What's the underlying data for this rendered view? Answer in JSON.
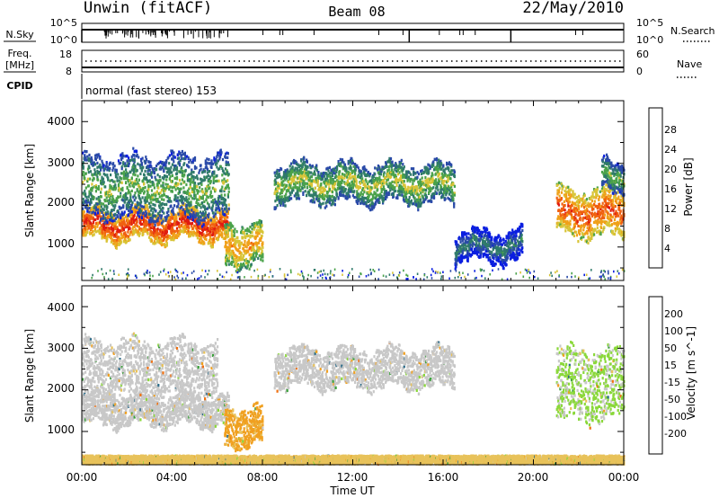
{
  "header": {
    "station": "Unwin (fitACF)",
    "beam": "Beam 08",
    "date": "22/May/2010"
  },
  "status_panels": {
    "nsky": {
      "label": "N.Sky",
      "ticks": [
        "10^5",
        "10^0"
      ]
    },
    "nsearch": {
      "label": "N.Search",
      "ticks": [
        "10^5",
        "10^0"
      ]
    },
    "freq": {
      "label_line1": "Freq.",
      "label_line2": "[MHz]",
      "ticks": [
        "18",
        "8"
      ]
    },
    "nave": {
      "label": "Nave",
      "ticks": [
        "60",
        "0"
      ]
    },
    "cpid": {
      "label": "CPID",
      "value": "normal (fast stereo) 153"
    }
  },
  "colors": {
    "power_scale": [
      "#0a1ee0",
      "#2a4aa8",
      "#2f7a6a",
      "#4aa24a",
      "#d8c436",
      "#f0a018",
      "#f06010",
      "#e01c10"
    ],
    "velocity_scale": [
      "#2040a8",
      "#2a6a88",
      "#3aa03a",
      "#8ad83a",
      "#c8c8c8",
      "#e8c25a",
      "#f0a020",
      "#f07010",
      "#e84810",
      "#e01010"
    ]
  },
  "chart_data": [
    {
      "type": "heatmap",
      "title": "Power",
      "xlabel": "",
      "ylabel": "Slant Range [km]",
      "xlim": [
        0,
        24
      ],
      "ylim": [
        200,
        4500
      ],
      "ytick_labels": [
        "1000",
        "2000",
        "3000",
        "4000"
      ],
      "colorbar": {
        "label": "Power [dB]",
        "tick_labels": [
          "4",
          "8",
          "12",
          "16",
          "20",
          "24",
          "28"
        ]
      },
      "regions": [
        {
          "x": [
            0.0,
            6.5
          ],
          "range": [
            1200,
            1900
          ],
          "power_db": 24
        },
        {
          "x": [
            0.0,
            6.5
          ],
          "range": [
            1700,
            3200
          ],
          "power_db": 10
        },
        {
          "x": [
            6.3,
            8.0
          ],
          "range": [
            600,
            1600
          ],
          "power_db": 18
        },
        {
          "x": [
            8.5,
            16.5
          ],
          "range": [
            2100,
            3000
          ],
          "power_db": 12
        },
        {
          "x": [
            16.5,
            19.5
          ],
          "range": [
            700,
            1400
          ],
          "power_db": 5
        },
        {
          "x": [
            21.0,
            24.0
          ],
          "range": [
            1300,
            2400
          ],
          "power_db": 22
        },
        {
          "x": [
            23.0,
            24.0
          ],
          "range": [
            2400,
            3100
          ],
          "power_db": 10
        }
      ]
    },
    {
      "type": "heatmap",
      "title": "Velocity",
      "xlabel": "Time UT",
      "ylabel": "Slant Range [km]",
      "xlim": [
        0,
        24
      ],
      "ylim": [
        200,
        4500
      ],
      "xtick_labels": [
        "00:00",
        "04:00",
        "08:00",
        "12:00",
        "16:00",
        "20:00",
        "00:00"
      ],
      "ytick_labels": [
        "1000",
        "2000",
        "3000",
        "4000"
      ],
      "colorbar": {
        "label": "Velocity [m s^-1]",
        "tick_labels": [
          "200",
          "100",
          "50",
          "15",
          "-15",
          "-50",
          "-100",
          "-200"
        ]
      },
      "regions": [
        {
          "x": [
            0.0,
            6.5
          ],
          "range": [
            1200,
            1900
          ],
          "velocity": 0
        },
        {
          "x": [
            0.0,
            6.0
          ],
          "range": [
            1900,
            3200
          ],
          "velocity": 0
        },
        {
          "x": [
            6.3,
            8.0
          ],
          "range": [
            700,
            1600
          ],
          "velocity": -60
        },
        {
          "x": [
            8.5,
            16.5
          ],
          "range": [
            2100,
            3000
          ],
          "velocity": 0
        },
        {
          "x": [
            21.0,
            24.0
          ],
          "range": [
            1300,
            3000
          ],
          "velocity": 20
        },
        {
          "x": [
            0.0,
            24.0
          ],
          "range": [
            250,
            450
          ],
          "velocity": -30
        }
      ]
    }
  ]
}
